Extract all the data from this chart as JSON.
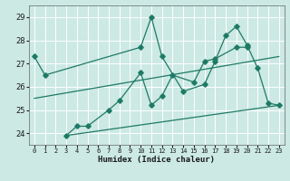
{
  "xlabel": "Humidex (Indice chaleur)",
  "xlim": [
    -0.5,
    23.5
  ],
  "ylim": [
    23.5,
    29.5
  ],
  "yticks": [
    24,
    25,
    26,
    27,
    28,
    29
  ],
  "xticks": [
    0,
    1,
    2,
    3,
    4,
    5,
    6,
    7,
    8,
    9,
    10,
    11,
    12,
    13,
    14,
    15,
    16,
    17,
    18,
    19,
    20,
    21,
    22,
    23
  ],
  "bg_color": "#cce9e4",
  "line_color": "#1e7a65",
  "grid_color": "#ffffff",
  "line1_x": [
    0,
    1,
    10,
    11,
    12,
    14,
    16,
    17,
    18,
    19,
    20,
    21,
    22,
    23
  ],
  "line1_y": [
    27.3,
    26.5,
    27.7,
    29.0,
    27.3,
    25.8,
    26.1,
    27.1,
    28.2,
    28.6,
    27.8,
    26.8,
    25.3,
    25.2
  ],
  "line2_x": [
    3,
    4,
    5,
    7,
    8,
    10,
    11,
    12,
    13,
    15,
    16,
    17,
    19,
    20
  ],
  "line2_y": [
    23.9,
    24.3,
    24.3,
    25.0,
    25.4,
    26.6,
    25.2,
    25.6,
    26.5,
    26.2,
    27.1,
    27.2,
    27.7,
    27.7
  ],
  "trend1_x": [
    0,
    23
  ],
  "trend1_y": [
    25.5,
    27.3
  ],
  "trend2_x": [
    3,
    23
  ],
  "trend2_y": [
    23.9,
    25.2
  ]
}
